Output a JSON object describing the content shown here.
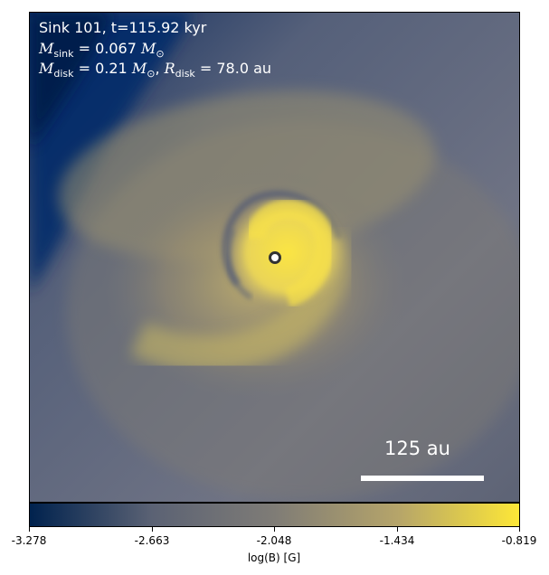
{
  "sink_line": "Sink 101, t=115.92 kyr",
  "msink_value": "0.067",
  "mdisk_value": "0.21",
  "rdisk_value": "78.0",
  "rdisk_unit": "au",
  "scale_label": "125 au",
  "colorbar": {
    "label": "log(B) [G]",
    "ticks": [
      "-3.278",
      "-2.663",
      "-2.048",
      "-1.434",
      "-0.819"
    ],
    "colors": [
      "#00224e",
      "#5b6274",
      "#7f7c76",
      "#b5a46a",
      "#fde737"
    ]
  }
}
